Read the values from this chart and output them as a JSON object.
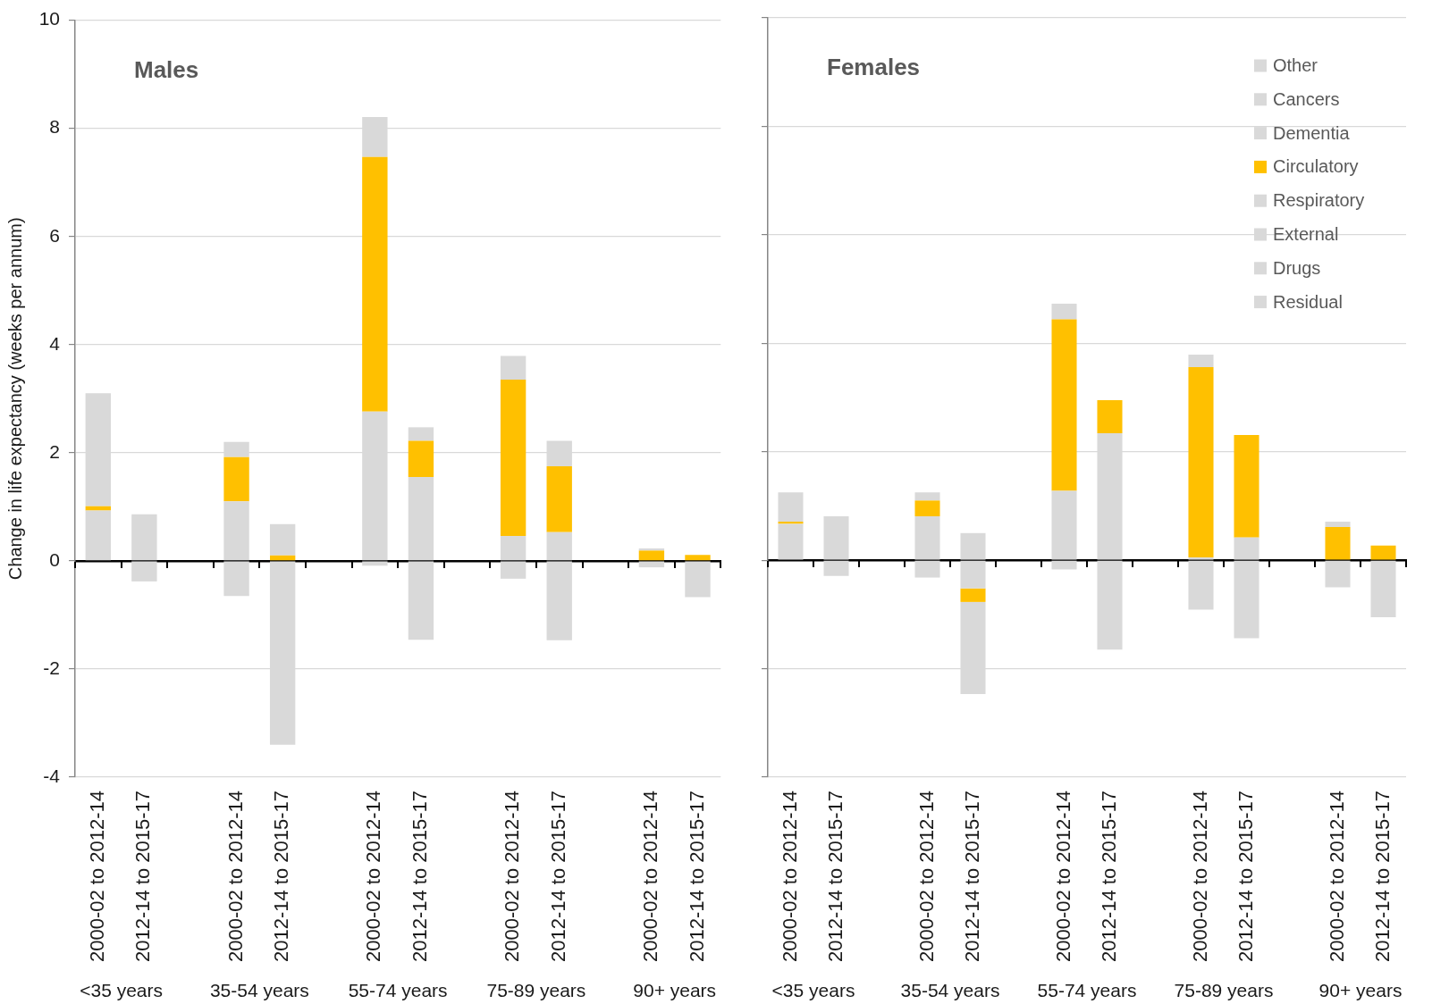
{
  "chart_data": [
    {
      "type": "bar",
      "title": "Males",
      "ylabel": "Change in life expectancy (weeks per annum)",
      "categories": [
        "2000-02 to 2012-14",
        "2012-14 to 2015-17",
        null,
        "2000-02 to 2012-14",
        "2012-14 to 2015-17",
        null,
        "2000-02 to 2012-14",
        "2012-14 to 2015-17",
        null,
        "2000-02 to 2012-14",
        "2012-14 to 2015-17",
        null,
        "2000-02 to 2012-14",
        "2012-14 to 2015-17"
      ],
      "stacked": true,
      "ylim": [
        -4,
        10
      ],
      "yticks": [
        -4,
        -2,
        0,
        2,
        4,
        6,
        8,
        10
      ],
      "grid": "y",
      "annotations": [
        "<35 years",
        "35-54 years",
        "55-74 years",
        "75-89 years",
        "90+ years"
      ],
      "series": [
        {
          "color": "#d9d9d9",
          "values": [
            0.93,
            0.86,
            null,
            1.1,
            null,
            null,
            2.76,
            1.55,
            null,
            0.46,
            0.53,
            null,
            null,
            null
          ]
        },
        {
          "color": "#d9d9d9",
          "values": [
            null,
            -0.38,
            null,
            -0.65,
            -3.4,
            null,
            -0.09,
            -1.46,
            null,
            -0.33,
            -1.47,
            null,
            -0.12,
            -0.67
          ]
        },
        {
          "color": "#ffc000",
          "values": [
            0.08,
            null,
            null,
            0.82,
            0.1,
            null,
            4.71,
            0.67,
            null,
            2.89,
            1.22,
            null,
            0.19,
            0.11
          ]
        },
        {
          "color": "#d9d9d9",
          "values": [
            2.09,
            null,
            null,
            0.28,
            0.58,
            null,
            0.74,
            0.25,
            null,
            0.44,
            0.47,
            null,
            0.04,
            null
          ]
        }
      ]
    },
    {
      "type": "bar",
      "title": "Females",
      "categories": [
        "2000-02 to 2012-14",
        "2012-14 to 2015-17",
        null,
        "2000-02 to 2012-14",
        "2012-14 to 2015-17",
        null,
        "2000-02 to 2012-14",
        "2012-14 to 2015-17",
        null,
        "2000-02 to 2012-14",
        "2012-14 to 2015-17",
        null,
        "2000-02 to 2012-14",
        "2012-14 to 2015-17"
      ],
      "stacked": true,
      "ylim": [
        -4,
        10
      ],
      "yticks": [
        -4,
        -2,
        0,
        2,
        4,
        6,
        8,
        10
      ],
      "grid": "y",
      "tick_labels": "x",
      "legend": "top right",
      "annotations": [
        "<35 years",
        "35-54 years",
        "55-74 years",
        "75-89 years",
        "90+ years"
      ],
      "series": [
        {
          "name": "Residual",
          "color": "#d9d9d9",
          "values": [
            0.67,
            0.81,
            null,
            0.81,
            0.5,
            null,
            1.28,
            2.34,
            null,
            0.05,
            0.42,
            null,
            null,
            null
          ]
        },
        {
          "name": "Drugs",
          "color": "#d9d9d9",
          "values": [
            null,
            -0.29,
            null,
            -0.32,
            -0.52,
            null,
            -0.17,
            -1.65,
            null,
            -0.91,
            -1.44,
            null,
            -0.5,
            -1.05
          ]
        },
        {
          "name": "External",
          "color": "#d9d9d9",
          "values": [
            null,
            null,
            null,
            null,
            null,
            null,
            null,
            null,
            null,
            null,
            null,
            null,
            null,
            null
          ]
        },
        {
          "name": "Respiratory",
          "color": "#d9d9d9",
          "values": [
            null,
            null,
            null,
            null,
            null,
            null,
            null,
            null,
            null,
            null,
            null,
            null,
            null,
            null
          ]
        },
        {
          "name": "Circulatory",
          "color": "#ffc000",
          "values": [
            0.04,
            null,
            null,
            0.29,
            -0.25,
            null,
            3.16,
            0.61,
            null,
            3.51,
            1.89,
            null,
            0.61,
            0.27
          ]
        },
        {
          "name": "Dementia",
          "color": "#d9d9d9",
          "values": [
            null,
            null,
            null,
            null,
            null,
            null,
            null,
            null,
            null,
            null,
            null,
            null,
            null,
            null
          ]
        },
        {
          "name": "Cancers",
          "color": "#d9d9d9",
          "values": [
            null,
            null,
            null,
            null,
            -1.7,
            null,
            null,
            null,
            null,
            null,
            null,
            null,
            null,
            null
          ]
        },
        {
          "name": "Other",
          "color": "#d9d9d9",
          "values": [
            0.54,
            null,
            null,
            0.15,
            null,
            null,
            0.29,
            null,
            null,
            0.23,
            null,
            null,
            0.1,
            null
          ]
        }
      ]
    }
  ]
}
